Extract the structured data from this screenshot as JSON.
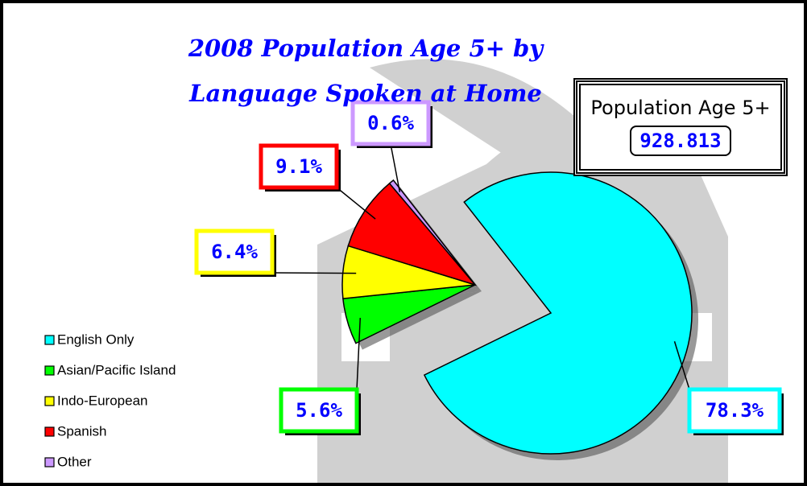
{
  "chart_data": {
    "type": "pie",
    "title": "2008 Population Age 5+ by Language Spoken at Home",
    "categories": [
      "English Only",
      "Asian/Pacific Island",
      "Indo-European",
      "Spanish",
      "Other"
    ],
    "values": [
      78.3,
      5.6,
      6.4,
      9.1,
      0.6
    ],
    "value_labels": [
      "78.3%",
      "5.6%",
      "6.4%",
      "9.1%",
      "0.6%"
    ],
    "colors": [
      "#00ffff",
      "#00ff00",
      "#ffff00",
      "#ff0000",
      "#cc99ff"
    ],
    "legend": "left",
    "annotation": {
      "label": "Population Age 5+",
      "value": "928.813"
    }
  }
}
